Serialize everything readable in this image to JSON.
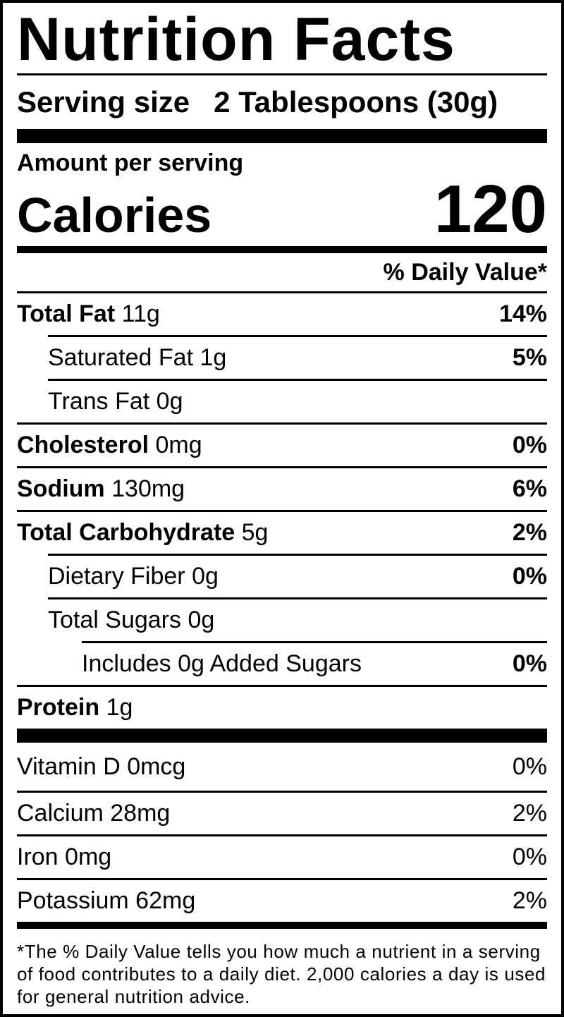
{
  "title": "Nutrition Facts",
  "serving": {
    "label": "Serving size",
    "value": "2 Tablespoons (30g)"
  },
  "amount_label": "Amount per serving",
  "calories": {
    "label": "Calories",
    "value": "120"
  },
  "dv_header": "% Daily Value*",
  "nutrients": [
    {
      "name": "Total Fat",
      "amount": "11g",
      "dv": "14%"
    },
    {
      "name": "Saturated Fat",
      "amount": "1g",
      "dv": "5%"
    },
    {
      "name": "Trans Fat",
      "amount": "0g",
      "dv": ""
    },
    {
      "name": "Cholesterol",
      "amount": "0mg",
      "dv": "0%"
    },
    {
      "name": "Sodium",
      "amount": "130mg",
      "dv": "6%"
    },
    {
      "name": "Total Carbohydrate",
      "amount": "5g",
      "dv": "2%"
    },
    {
      "name": "Dietary Fiber",
      "amount": "0g",
      "dv": "0%"
    },
    {
      "name": "Total Sugars",
      "amount": "0g",
      "dv": ""
    },
    {
      "name": "Includes 0g Added Sugars",
      "amount": "",
      "dv": "0%"
    },
    {
      "name": "Protein",
      "amount": "1g",
      "dv": ""
    }
  ],
  "vitamins": [
    {
      "name": "Vitamin D 0mcg",
      "dv": "0%"
    },
    {
      "name": "Calcium 28mg",
      "dv": "2%"
    },
    {
      "name": "Iron 0mg",
      "dv": "0%"
    },
    {
      "name": "Potassium 62mg",
      "dv": "2%"
    }
  ],
  "footnote": "*The % Daily Value tells you how much a nutrient in a serving of food contributes to a daily diet. 2,000 calories a day is used for general nutrition advice."
}
